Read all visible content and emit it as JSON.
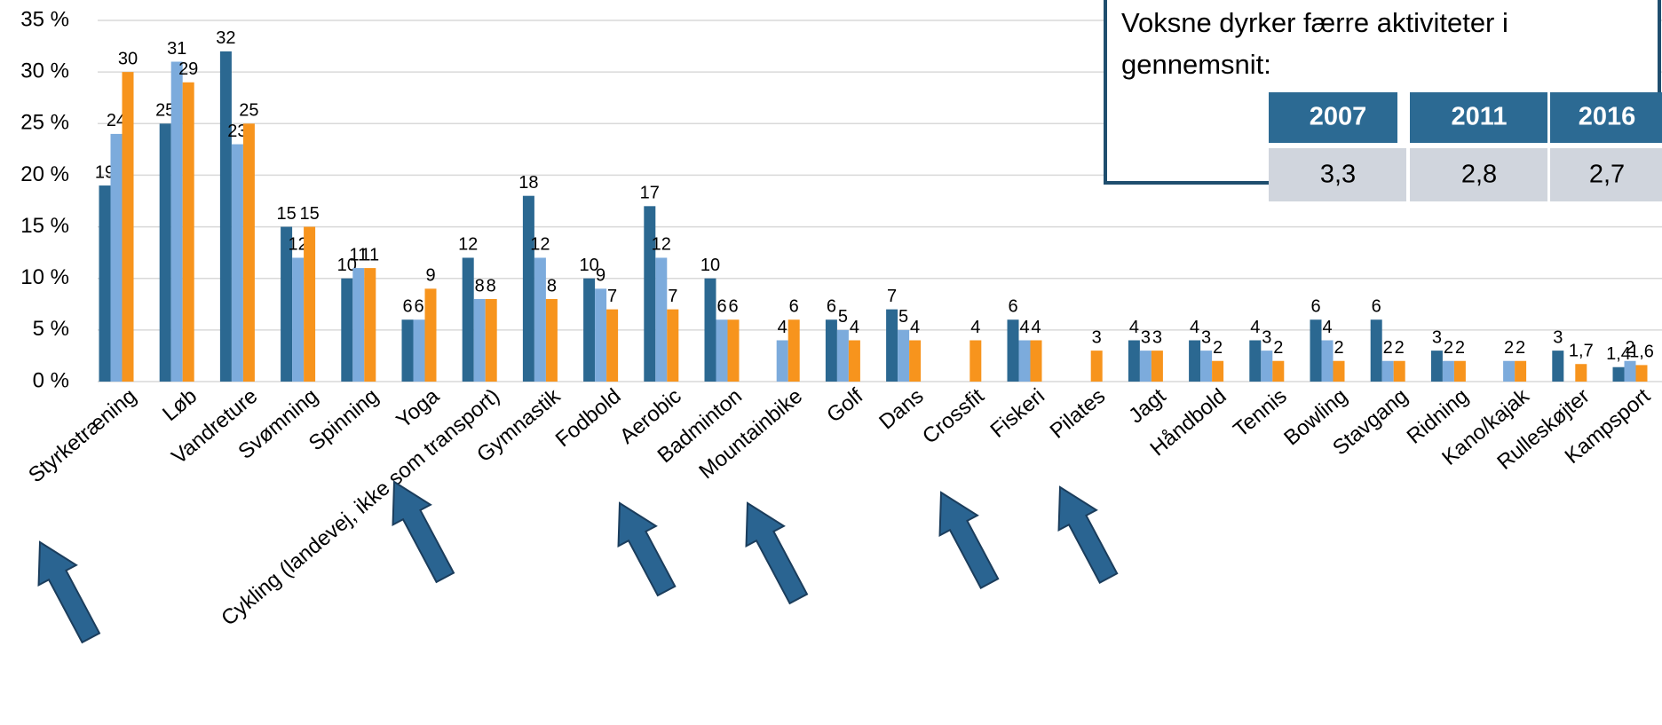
{
  "chart_data": {
    "type": "bar",
    "categories": [
      "Styrketræning",
      "Løb",
      "Vandreture",
      "Svømning",
      "Spinning",
      "Yoga",
      "Cykling (landevej, ikke som transport)",
      "Gymnastik",
      "Fodbold",
      "Aerobic",
      "Badminton",
      "Mountainbike",
      "Golf",
      "Dans",
      "Crossfit",
      "Fiskeri",
      "Pilates",
      "Jagt",
      "Håndbold",
      "Tennis",
      "Bowling",
      "Stavgang",
      "Ridning",
      "Kano/kajak",
      "Rulleskøjter",
      "Kampsport"
    ],
    "series": [
      {
        "name": "2007",
        "color": "#2b6891",
        "values": [
          19,
          25,
          32,
          15,
          10,
          6,
          12,
          18,
          10,
          17,
          10,
          null,
          6,
          7,
          null,
          6,
          null,
          4,
          4,
          4,
          6,
          6,
          3,
          null,
          3,
          1.4
        ],
        "value_labels": [
          "19",
          "25",
          "32",
          "15",
          "10",
          "6",
          "12",
          "18",
          "10",
          "17",
          "10",
          null,
          "6",
          "7",
          null,
          "6",
          null,
          "4",
          "4",
          "4",
          "6",
          "6",
          "3",
          null,
          "3",
          "1,4"
        ]
      },
      {
        "name": "2011",
        "color": "#7cabdc",
        "values": [
          24,
          31,
          23,
          12,
          11,
          6,
          8,
          12,
          9,
          12,
          6,
          4,
          5,
          5,
          null,
          4,
          null,
          3,
          3,
          3,
          4,
          2,
          2,
          2,
          null,
          2
        ],
        "value_labels": [
          "24",
          "31",
          "23",
          "12",
          "11",
          "6",
          "8",
          "12",
          "9",
          "12",
          "6",
          "4",
          "5",
          "5",
          null,
          "4",
          null,
          "3",
          "3",
          "3",
          "4",
          "2",
          "2",
          "2",
          null,
          "2"
        ]
      },
      {
        "name": "2016",
        "color": "#f7941d",
        "values": [
          30,
          29,
          25,
          15,
          11,
          9,
          8,
          8,
          7,
          7,
          6,
          6,
          4,
          4,
          4,
          4,
          3,
          3,
          2,
          2,
          2,
          2,
          2,
          2,
          1.7,
          1.6
        ],
        "value_labels": [
          "30",
          "29",
          "25",
          "15",
          "11",
          "9",
          "8",
          "8",
          "7",
          "7",
          "6",
          "6",
          "4",
          "4",
          "4",
          "4",
          "3",
          "3",
          "2",
          "2",
          "2",
          "2",
          "2",
          "2",
          "1,7",
          "1,6"
        ]
      }
    ],
    "ylim": [
      0,
      35
    ],
    "yticks": [
      {
        "value": 0,
        "label": "0 %"
      },
      {
        "value": 5,
        "label": "5 %"
      },
      {
        "value": 10,
        "label": "10 %"
      },
      {
        "value": 15,
        "label": "15 %"
      },
      {
        "value": 20,
        "label": "20 %"
      },
      {
        "value": 25,
        "label": "25 %"
      },
      {
        "value": 30,
        "label": "30 %"
      },
      {
        "value": 35,
        "label": "35 %"
      }
    ],
    "grid": true
  },
  "inset": {
    "text_line1": "Voksne dyrker færre aktiviteter i",
    "text_line2": "gennemsnit:",
    "table": {
      "header": [
        "2007",
        "2011",
        "2016"
      ],
      "row": [
        "3,3",
        "2,8",
        "2,7"
      ]
    }
  }
}
